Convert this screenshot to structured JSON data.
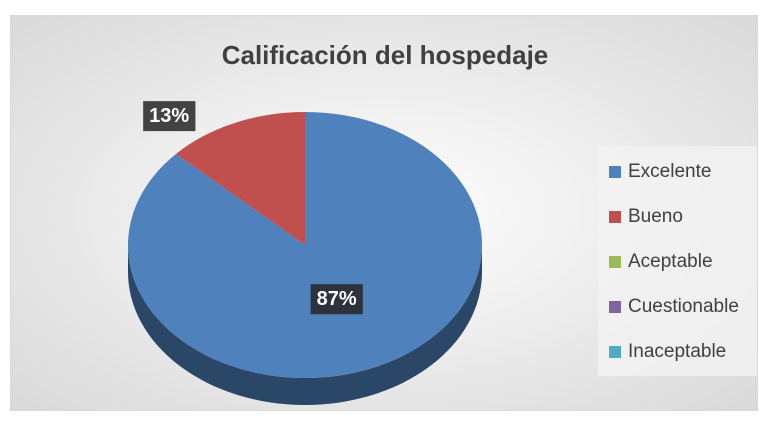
{
  "chart_data": {
    "type": "pie",
    "title": "Calificación del hospedaje",
    "categories": [
      "Excelente",
      "Bueno",
      "Aceptable",
      "Cuestionable",
      "Inaceptable"
    ],
    "values": [
      87,
      13,
      0,
      0,
      0
    ],
    "value_labels": [
      "87%",
      "13%",
      null,
      null,
      null
    ],
    "colors": [
      "#4f81bd",
      "#c0504d",
      "#9bbb59",
      "#8064a2",
      "#4bacc6"
    ],
    "legend": "right"
  }
}
